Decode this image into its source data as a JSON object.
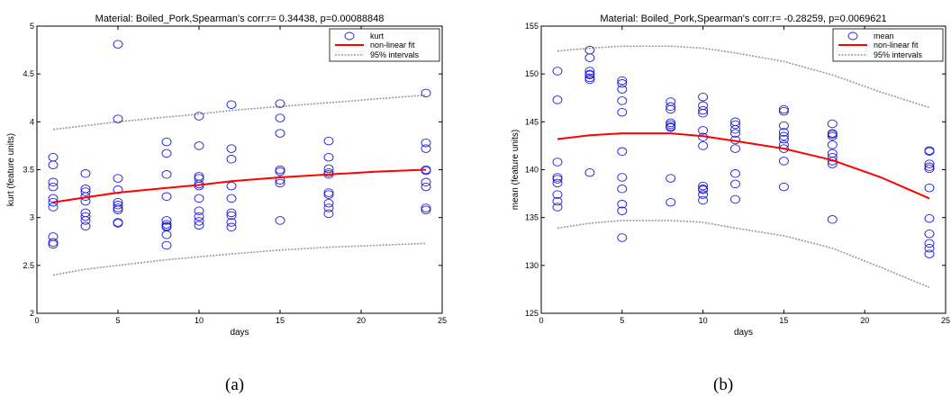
{
  "chart_data": [
    {
      "type": "scatter",
      "title": "Material: Boiled_Pork,Spearman's corr:r= 0.34438, p=0.00088848",
      "xlabel": "days",
      "ylabel": "kurt (feature units)",
      "xlim": [
        0,
        25
      ],
      "ylim": [
        2,
        5
      ],
      "xticks": [
        0,
        5,
        10,
        15,
        20,
        25
      ],
      "yticks": [
        2,
        2.5,
        3,
        3.5,
        4,
        4.5,
        5
      ],
      "legend_position": "top-right",
      "legend": [
        "kurt",
        "non-linear fit",
        "95% intervals"
      ],
      "points": {
        "x": [
          1,
          1,
          1,
          1,
          1,
          1,
          1,
          1,
          1,
          1,
          3,
          3,
          3,
          3,
          3,
          3,
          3,
          3,
          3,
          5,
          5,
          5,
          5,
          5,
          5,
          5,
          5,
          5,
          5,
          8,
          8,
          8,
          8,
          8,
          8,
          8,
          8,
          8,
          8,
          10,
          10,
          10,
          10,
          10,
          10,
          10,
          10,
          10,
          10,
          10,
          12,
          12,
          12,
          12,
          12,
          12,
          12,
          12,
          12,
          15,
          15,
          15,
          15,
          15,
          15,
          15,
          15,
          18,
          18,
          18,
          18,
          18,
          18,
          18,
          18,
          18,
          18,
          24,
          24,
          24,
          24,
          24,
          24,
          24,
          24,
          24
        ],
        "y": [
          3.63,
          3.55,
          3.37,
          3.32,
          3.2,
          3.16,
          3.11,
          2.8,
          2.74,
          2.72,
          3.46,
          3.3,
          3.27,
          3.22,
          3.17,
          3.05,
          3.01,
          2.97,
          2.91,
          4.81,
          4.03,
          3.41,
          3.29,
          3.16,
          3.13,
          3.1,
          3.08,
          2.95,
          2.94,
          3.79,
          3.67,
          3.45,
          3.22,
          2.97,
          2.93,
          2.91,
          2.9,
          2.82,
          2.71,
          4.06,
          3.75,
          3.43,
          3.41,
          3.35,
          3.33,
          3.2,
          3.07,
          3.01,
          2.96,
          2.92,
          4.18,
          3.72,
          3.61,
          3.33,
          3.2,
          3.05,
          3.02,
          2.95,
          2.9,
          4.19,
          4.04,
          3.88,
          3.5,
          3.48,
          3.39,
          3.36,
          2.97,
          3.8,
          3.63,
          3.51,
          3.47,
          3.45,
          3.26,
          3.24,
          3.15,
          3.1,
          3.04,
          4.3,
          3.78,
          3.72,
          3.5,
          3.49,
          3.37,
          3.32,
          3.1,
          3.08
        ]
      },
      "fit": {
        "x": [
          1,
          3,
          5,
          8,
          10,
          12,
          15,
          18,
          21,
          24
        ],
        "y": [
          3.16,
          3.21,
          3.26,
          3.31,
          3.34,
          3.38,
          3.42,
          3.45,
          3.48,
          3.5
        ]
      },
      "upper": {
        "x": [
          1,
          3,
          5,
          8,
          10,
          12,
          15,
          18,
          21,
          24
        ],
        "y": [
          3.92,
          3.96,
          4.0,
          4.05,
          4.08,
          4.12,
          4.16,
          4.2,
          4.24,
          4.28
        ]
      },
      "lower": {
        "x": [
          1,
          3,
          5,
          8,
          10,
          12,
          15,
          18,
          21,
          24
        ],
        "y": [
          2.4,
          2.46,
          2.5,
          2.56,
          2.59,
          2.62,
          2.66,
          2.69,
          2.71,
          2.73
        ]
      }
    },
    {
      "type": "scatter",
      "title": "Material: Boiled_Pork,Spearman's corr:r= -0.28259, p=0.0069621",
      "xlabel": "days",
      "ylabel": "mean (feature units)",
      "xlim": [
        0,
        25
      ],
      "ylim": [
        125,
        155
      ],
      "xticks": [
        0,
        5,
        10,
        15,
        20,
        25
      ],
      "yticks": [
        125,
        130,
        135,
        140,
        145,
        150,
        155
      ],
      "legend_position": "top-right",
      "legend": [
        "mean",
        "non-linear fit",
        "95% intervals"
      ],
      "points": {
        "x": [
          1,
          1,
          1,
          1,
          1,
          1,
          1,
          1,
          1,
          3,
          3,
          3,
          3,
          3,
          3,
          3,
          3,
          5,
          5,
          5,
          5,
          5,
          5,
          5,
          5,
          5,
          5,
          5,
          8,
          8,
          8,
          8,
          8,
          8,
          8,
          8,
          8,
          10,
          10,
          10,
          10,
          10,
          10,
          10,
          10,
          10,
          10,
          10,
          10,
          12,
          12,
          12,
          12,
          12,
          12,
          12,
          12,
          12,
          15,
          15,
          15,
          15,
          15,
          15,
          15,
          15,
          15,
          15,
          18,
          18,
          18,
          18,
          18,
          18,
          18,
          18,
          18,
          18,
          24,
          24,
          24,
          24,
          24,
          24,
          24,
          24,
          24,
          24,
          24
        ],
        "y": [
          150.3,
          147.3,
          140.8,
          139.0,
          138.6,
          137.4,
          136.7,
          136.1,
          139.2,
          152.5,
          151.7,
          150.3,
          149.9,
          149.6,
          149.4,
          139.7,
          150.0,
          149.3,
          148.4,
          147.2,
          146.0,
          141.9,
          139.2,
          138.0,
          136.4,
          135.7,
          132.9,
          149.0,
          147.1,
          146.6,
          146.3,
          144.9,
          144.7,
          144.4,
          139.1,
          136.6,
          144.5,
          147.6,
          146.7,
          145.9,
          144.1,
          143.4,
          142.5,
          138.3,
          137.9,
          137.4,
          136.8,
          146.2,
          138.0,
          145.0,
          144.7,
          144.2,
          143.8,
          143.1,
          142.2,
          139.6,
          138.5,
          136.9,
          146.3,
          146.1,
          144.6,
          143.9,
          143.5,
          143.2,
          142.6,
          142.2,
          140.9,
          138.2,
          144.8,
          143.8,
          143.5,
          142.6,
          141.7,
          141.3,
          140.9,
          140.6,
          134.8,
          143.7,
          142.0,
          141.9,
          140.6,
          140.1,
          138.1,
          134.9,
          133.3,
          132.3,
          131.8,
          131.2,
          140.3
        ]
      },
      "fit": {
        "x": [
          1,
          3,
          5,
          8,
          10,
          12,
          15,
          18,
          21,
          24
        ],
        "y": [
          143.2,
          143.6,
          143.8,
          143.8,
          143.5,
          143.0,
          142.2,
          141.0,
          139.2,
          137.0
        ]
      },
      "upper": {
        "x": [
          1,
          3,
          5,
          8,
          10,
          12,
          15,
          18,
          21,
          24
        ],
        "y": [
          152.4,
          152.7,
          152.9,
          152.9,
          152.7,
          152.2,
          151.3,
          149.9,
          148.1,
          146.5
        ]
      },
      "lower": {
        "x": [
          1,
          3,
          5,
          8,
          10,
          12,
          15,
          18,
          21,
          24
        ],
        "y": [
          133.9,
          134.4,
          134.7,
          134.7,
          134.5,
          133.9,
          133.1,
          131.8,
          129.8,
          127.7
        ]
      }
    }
  ],
  "panel_labels": [
    "(a)",
    "(b)"
  ],
  "colors": {
    "points": "#1f1fd8",
    "fit": "#ff0000",
    "intervals": "#9a9a9a"
  }
}
